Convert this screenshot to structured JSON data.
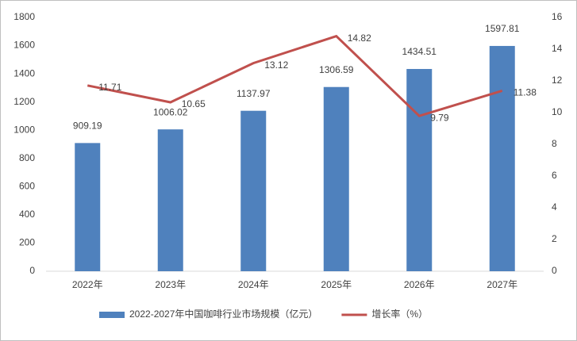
{
  "chart_data": {
    "type": "bar",
    "categories": [
      "2022年",
      "2023年",
      "2024年",
      "2025年",
      "2026年",
      "2027年"
    ],
    "series": [
      {
        "name": "2022-2027年中国咖啡行业市场规模（亿元）",
        "type": "bar",
        "color": "#4f81bd",
        "values": [
          909.19,
          1006.02,
          1137.97,
          1306.59,
          1434.51,
          1597.81
        ]
      },
      {
        "name": "增长率（%）",
        "type": "line",
        "axis": "y2",
        "color": "#c0504d",
        "values": [
          11.71,
          10.65,
          13.12,
          14.82,
          9.79,
          11.38
        ]
      }
    ],
    "ylim": [
      0,
      1800
    ],
    "yticks": [
      0,
      200,
      400,
      600,
      800,
      1000,
      1200,
      1400,
      1600,
      1800
    ],
    "y2lim": [
      0,
      16
    ],
    "y2ticks": [
      0,
      2,
      4,
      6,
      8,
      10,
      12,
      14,
      16
    ],
    "legend": "bottom"
  }
}
